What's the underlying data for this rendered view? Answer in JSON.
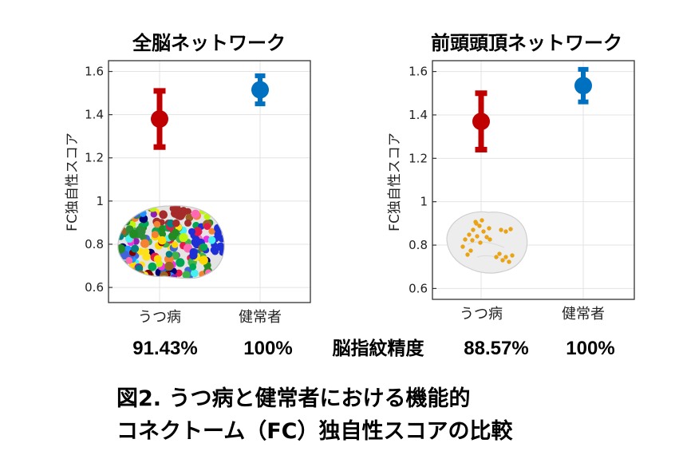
{
  "chart_data": [
    {
      "type": "scatter",
      "title": "全脳ネットワーク",
      "ylabel": "FC独自性スコア",
      "xlabel": "",
      "categories": [
        "うつ病",
        "健常者"
      ],
      "ylim": [
        0.53,
        1.65
      ],
      "yticks": [
        0.6,
        0.8,
        1,
        1.2,
        1.4,
        1.6
      ],
      "ytick_labels": [
        "0.6",
        "0.8",
        "1",
        "1.2",
        "1.4",
        "1.6"
      ],
      "grid": true,
      "series": [
        {
          "category": "うつ病",
          "value": 1.38,
          "error_low": 1.25,
          "error_high": 1.51,
          "color": "#c00000"
        },
        {
          "category": "健常者",
          "value": 1.515,
          "error_low": 1.45,
          "error_high": 1.58,
          "color": "#0070c0"
        }
      ],
      "accuracy_values": [
        "91.43%",
        "100%"
      ],
      "inset": "brain-all-networks"
    },
    {
      "type": "scatter",
      "title": "前頭頭頂ネットワーク",
      "ylabel": "FC独自性スコア",
      "xlabel": "",
      "categories": [
        "うつ病",
        "健常者"
      ],
      "ylim": [
        0.55,
        1.65
      ],
      "yticks": [
        0.6,
        0.8,
        1,
        1.2,
        1.4,
        1.6
      ],
      "ytick_labels": [
        "0.6",
        "0.8",
        "1",
        "1.2",
        "1.4",
        "1.6"
      ],
      "grid": true,
      "series": [
        {
          "category": "うつ病",
          "value": 1.37,
          "error_low": 1.24,
          "error_high": 1.5,
          "color": "#c00000"
        },
        {
          "category": "健常者",
          "value": 1.535,
          "error_low": 1.46,
          "error_high": 1.61,
          "color": "#0070c0"
        }
      ],
      "accuracy_values": [
        "88.57%",
        "100%"
      ],
      "inset": "brain-frontoparietal"
    }
  ],
  "accuracy_label": "脳指紋精度",
  "caption": {
    "line1": "図2. うつ病と健常者における機能的",
    "line2": "コネクトーム（FC）独自性スコアの比較"
  },
  "colors": {
    "depression": "#c00000",
    "healthy": "#0070c0",
    "frontoparietal_nodes": "#e8a317",
    "grid": "#e3e3e3"
  }
}
